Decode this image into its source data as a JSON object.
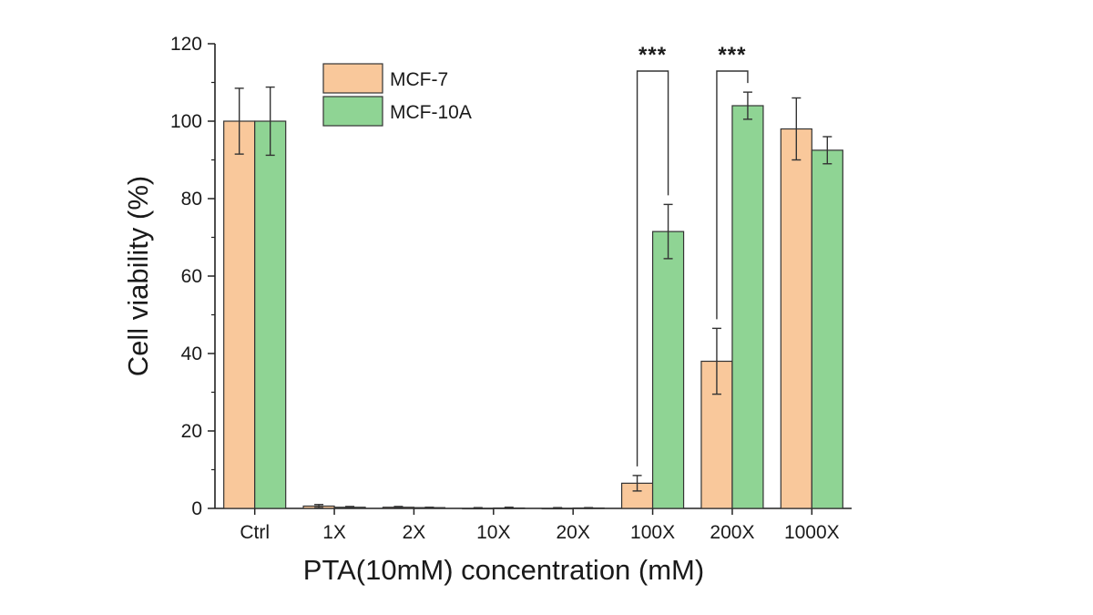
{
  "chart_data": {
    "type": "bar",
    "title": "",
    "xlabel": "PTA(10mM) concentration (mM)",
    "ylabel": "Cell viability (%)",
    "ylim": [
      0,
      120
    ],
    "yticks": [
      "0",
      "20",
      "40",
      "60",
      "80",
      "100",
      "120"
    ],
    "categories": [
      "Ctrl",
      "1X",
      "2X",
      "10X",
      "20X",
      "100X",
      "200X",
      "1000X"
    ],
    "series": [
      {
        "name": "MCF-7",
        "color": "#f9c89b",
        "values": [
          100,
          0.6,
          0.3,
          0,
          0,
          6.5,
          38,
          98
        ],
        "errors": [
          8.5,
          0.4,
          0.2,
          0.2,
          0.2,
          2,
          8.5,
          8
        ]
      },
      {
        "name": "MCF-10A",
        "color": "#8fd494",
        "values": [
          100,
          0.3,
          0.2,
          0.1,
          0.1,
          71.5,
          104,
          92.5
        ],
        "errors": [
          8.8,
          0.2,
          0.1,
          0.2,
          0.1,
          7,
          3.5,
          3.5
        ]
      }
    ],
    "annotations": [
      {
        "text": "***",
        "category": "100X"
      },
      {
        "text": "***",
        "category": "200X"
      }
    ],
    "legend": {
      "placement": "top-center"
    },
    "grid": false
  }
}
